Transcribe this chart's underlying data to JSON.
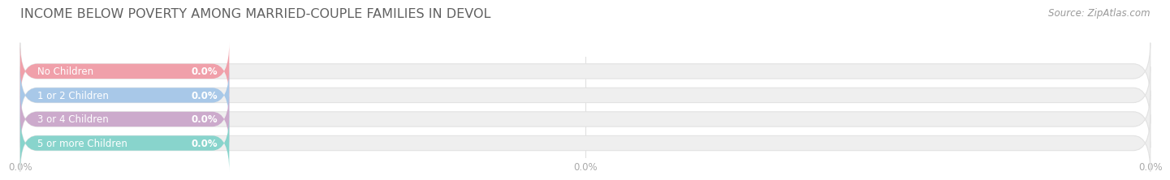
{
  "title": "INCOME BELOW POVERTY AMONG MARRIED-COUPLE FAMILIES IN DEVOL",
  "source_text": "Source: ZipAtlas.com",
  "categories": [
    "No Children",
    "1 or 2 Children",
    "3 or 4 Children",
    "5 or more Children"
  ],
  "values": [
    0.0,
    0.0,
    0.0,
    0.0
  ],
  "bar_colors": [
    "#f0a0aa",
    "#a8c8e8",
    "#ccaacc",
    "#88d4cc"
  ],
  "background_color": "#ffffff",
  "bar_bg_color": "#efefef",
  "bar_bg_edge_color": "#e2e2e2",
  "xlim_max": 100,
  "title_fontsize": 11.5,
  "source_fontsize": 8.5,
  "label_fontsize": 8.5,
  "value_fontsize": 8.5,
  "tick_fontsize": 8.5,
  "bar_height": 0.62,
  "colored_bar_pct": 18.5,
  "xtick_positions": [
    0,
    50,
    100
  ],
  "xtick_labels": [
    "0.0%",
    "0.0%",
    "0.0%"
  ],
  "tick_color": "#aaaaaa",
  "grid_color": "#e0e0e0",
  "title_color": "#606060",
  "source_color": "#999999",
  "label_color": "#ffffff",
  "value_color": "#ffffff"
}
